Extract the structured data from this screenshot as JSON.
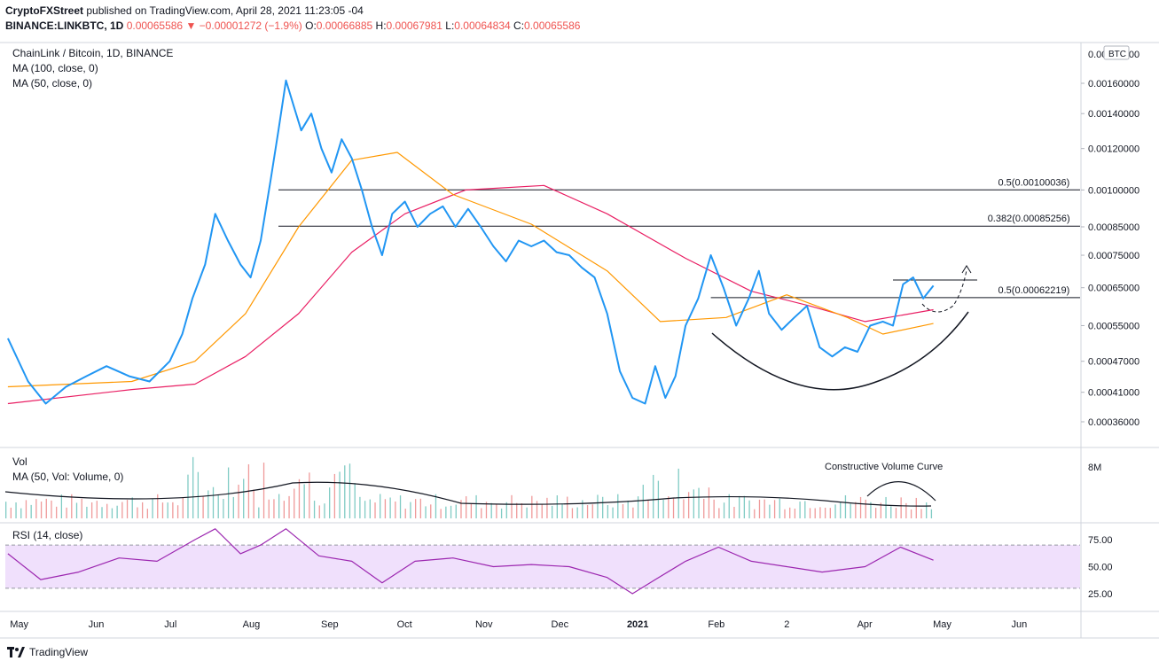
{
  "header": {
    "publisher": "CryptoFXStreet",
    "published_text": "published on TradingView.com, April 28, 2021 11:23:05 -04",
    "symbol": "BINANCE:LINKBTC, 1D",
    "last_price": "0.00065586",
    "change": "−0.00001272 (−1.9%)",
    "o_label": "O:",
    "o_value": "0.00066885",
    "h_label": "H:",
    "h_value": "0.00067981",
    "l_label": "L:",
    "l_value": "0.00064834",
    "c_label": "C:",
    "c_value": "0.00065586"
  },
  "legend": {
    "title": "ChainLink / Bitcoin, 1D, BINANCE",
    "ma100": "MA (100, close, 0)",
    "ma50": "MA (50, close, 0)",
    "vol": "Vol",
    "vol_ma": "MA (50, Vol: Volume, 0)",
    "rsi": "RSI (14, close)"
  },
  "footer": {
    "brand": "TradingView"
  },
  "colors": {
    "price": "#2196f3",
    "ma100": "#e91e63",
    "ma50": "#ff9800",
    "rsi_line": "#9c27b0",
    "rsi_band": "#f0e0fc",
    "vol_up": "#80cbc4",
    "vol_down": "#ef9a9a"
  },
  "chart_data": {
    "type": "line",
    "price_axis": {
      "unit_badge": "BTC",
      "ticks": [
        "0.00160000",
        "0.00140000",
        "0.00120000",
        "0.00100000",
        "0.00085000",
        "0.00075000",
        "0.00065000",
        "0.00055000",
        "0.00047000",
        "0.00041000",
        "0.00036000"
      ],
      "scale": "log"
    },
    "time_axis": {
      "ticks": [
        "May",
        "Jun",
        "Jul",
        "Aug",
        "Sep",
        "Oct",
        "Nov",
        "Dec",
        "2021",
        "Feb",
        "2",
        "Apr",
        "May",
        "Jun"
      ]
    },
    "series": [
      {
        "name": "price",
        "points": [
          [
            "2020-04-27",
            0.00052
          ],
          [
            "2020-05-05",
            0.00043
          ],
          [
            "2020-05-12",
            0.00039
          ],
          [
            "2020-05-20",
            0.00042
          ],
          [
            "2020-05-28",
            0.00044
          ],
          [
            "2020-06-05",
            0.00046
          ],
          [
            "2020-06-14",
            0.00044
          ],
          [
            "2020-06-22",
            0.00043
          ],
          [
            "2020-06-30",
            0.00047
          ],
          [
            "2020-07-05",
            0.00053
          ],
          [
            "2020-07-09",
            0.00062
          ],
          [
            "2020-07-14",
            0.00072
          ],
          [
            "2020-07-18",
            0.0009
          ],
          [
            "2020-07-23",
            0.0008
          ],
          [
            "2020-07-28",
            0.00072
          ],
          [
            "2020-08-01",
            0.00068
          ],
          [
            "2020-08-05",
            0.0008
          ],
          [
            "2020-08-09",
            0.00105
          ],
          [
            "2020-08-12",
            0.0013
          ],
          [
            "2020-08-15",
            0.00162
          ],
          [
            "2020-08-18",
            0.00145
          ],
          [
            "2020-08-21",
            0.0013
          ],
          [
            "2020-08-25",
            0.0014
          ],
          [
            "2020-08-29",
            0.0012
          ],
          [
            "2020-09-02",
            0.00108
          ],
          [
            "2020-09-06",
            0.00125
          ],
          [
            "2020-09-10",
            0.00115
          ],
          [
            "2020-09-14",
            0.001
          ],
          [
            "2020-09-18",
            0.00085
          ],
          [
            "2020-09-22",
            0.00075
          ],
          [
            "2020-09-26",
            0.0009
          ],
          [
            "2020-10-01",
            0.00095
          ],
          [
            "2020-10-06",
            0.00085
          ],
          [
            "2020-10-11",
            0.0009
          ],
          [
            "2020-10-16",
            0.00093
          ],
          [
            "2020-10-21",
            0.00085
          ],
          [
            "2020-10-26",
            0.00092
          ],
          [
            "2020-10-31",
            0.00085
          ],
          [
            "2020-11-05",
            0.00078
          ],
          [
            "2020-11-10",
            0.00073
          ],
          [
            "2020-11-15",
            0.0008
          ],
          [
            "2020-11-20",
            0.00078
          ],
          [
            "2020-11-25",
            0.0008
          ],
          [
            "2020-11-30",
            0.00076
          ],
          [
            "2020-12-05",
            0.00075
          ],
          [
            "2020-12-10",
            0.00071
          ],
          [
            "2020-12-15",
            0.00068
          ],
          [
            "2020-12-20",
            0.00058
          ],
          [
            "2020-12-25",
            0.00045
          ],
          [
            "2020-12-30",
            0.0004
          ],
          [
            "2021-01-04",
            0.00039
          ],
          [
            "2021-01-08",
            0.00046
          ],
          [
            "2021-01-12",
            0.0004
          ],
          [
            "2021-01-16",
            0.00044
          ],
          [
            "2021-01-20",
            0.00055
          ],
          [
            "2021-01-25",
            0.00062
          ],
          [
            "2021-01-30",
            0.00075
          ],
          [
            "2021-02-04",
            0.00065
          ],
          [
            "2021-02-09",
            0.00055
          ],
          [
            "2021-02-14",
            0.00062
          ],
          [
            "2021-02-18",
            0.0007
          ],
          [
            "2021-02-22",
            0.00058
          ],
          [
            "2021-02-27",
            0.00054
          ],
          [
            "2021-03-04",
            0.00057
          ],
          [
            "2021-03-09",
            0.0006
          ],
          [
            "2021-03-14",
            0.0005
          ],
          [
            "2021-03-19",
            0.00048
          ],
          [
            "2021-03-24",
            0.0005
          ],
          [
            "2021-03-29",
            0.00049
          ],
          [
            "2021-04-03",
            0.00055
          ],
          [
            "2021-04-08",
            0.00056
          ],
          [
            "2021-04-12",
            0.00055
          ],
          [
            "2021-04-16",
            0.00066
          ],
          [
            "2021-04-20",
            0.00068
          ],
          [
            "2021-04-24",
            0.00062
          ],
          [
            "2021-04-28",
            0.00065586
          ]
        ]
      },
      {
        "name": "ma100",
        "points": [
          [
            "2020-04-27",
            0.00039
          ],
          [
            "2020-06-15",
            0.000415
          ],
          [
            "2020-07-10",
            0.000425
          ],
          [
            "2020-07-30",
            0.00048
          ],
          [
            "2020-08-20",
            0.00058
          ],
          [
            "2020-09-10",
            0.00076
          ],
          [
            "2020-10-01",
            0.0009
          ],
          [
            "2020-10-25",
            0.001
          ],
          [
            "2020-11-25",
            0.00102
          ],
          [
            "2020-12-20",
            0.0009
          ],
          [
            "2021-01-20",
            0.00074
          ],
          [
            "2021-02-15",
            0.00064
          ],
          [
            "2021-03-10",
            0.0006
          ],
          [
            "2021-04-01",
            0.00056
          ],
          [
            "2021-04-28",
            0.00059
          ]
        ]
      },
      {
        "name": "ma50",
        "points": [
          [
            "2020-04-27",
            0.00042
          ],
          [
            "2020-06-15",
            0.00043
          ],
          [
            "2020-07-10",
            0.00047
          ],
          [
            "2020-07-30",
            0.00058
          ],
          [
            "2020-08-20",
            0.00085
          ],
          [
            "2020-09-10",
            0.00114
          ],
          [
            "2020-09-28",
            0.00118
          ],
          [
            "2020-10-20",
            0.00098
          ],
          [
            "2020-11-20",
            0.00086
          ],
          [
            "2020-12-20",
            0.0007
          ],
          [
            "2021-01-10",
            0.00056
          ],
          [
            "2021-02-05",
            0.00057
          ],
          [
            "2021-03-01",
            0.00063
          ],
          [
            "2021-03-25",
            0.00057
          ],
          [
            "2021-04-08",
            0.00053
          ],
          [
            "2021-04-28",
            0.000555
          ]
        ]
      }
    ],
    "annotations": [
      {
        "label": "0.5(0.00100036)",
        "price": 0.00100036
      },
      {
        "label": "0.382(0.00085256)",
        "price": 0.00085256
      },
      {
        "label": "0.5(0.00062219)",
        "price": 0.00062219
      }
    ],
    "volume": {
      "axis_label": "8M",
      "annotation": "Constructive Volume Curve"
    },
    "rsi": {
      "ticks": [
        "75.00",
        "50.00",
        "25.00"
      ],
      "points": [
        [
          "2020-04-27",
          62
        ],
        [
          "2020-05-10",
          38
        ],
        [
          "2020-05-25",
          45
        ],
        [
          "2020-06-10",
          58
        ],
        [
          "2020-06-25",
          55
        ],
        [
          "2020-07-10",
          75
        ],
        [
          "2020-07-18",
          85
        ],
        [
          "2020-07-28",
          62
        ],
        [
          "2020-08-05",
          70
        ],
        [
          "2020-08-15",
          85
        ],
        [
          "2020-08-28",
          60
        ],
        [
          "2020-09-10",
          55
        ],
        [
          "2020-09-22",
          35
        ],
        [
          "2020-10-05",
          55
        ],
        [
          "2020-10-20",
          58
        ],
        [
          "2020-11-05",
          50
        ],
        [
          "2020-11-20",
          52
        ],
        [
          "2020-12-05",
          50
        ],
        [
          "2020-12-20",
          40
        ],
        [
          "2020-12-30",
          25
        ],
        [
          "2021-01-08",
          38
        ],
        [
          "2021-01-20",
          55
        ],
        [
          "2021-02-02",
          68
        ],
        [
          "2021-02-15",
          55
        ],
        [
          "2021-03-01",
          50
        ],
        [
          "2021-03-15",
          45
        ],
        [
          "2021-04-01",
          50
        ],
        [
          "2021-04-15",
          68
        ],
        [
          "2021-04-28",
          56
        ]
      ]
    }
  }
}
